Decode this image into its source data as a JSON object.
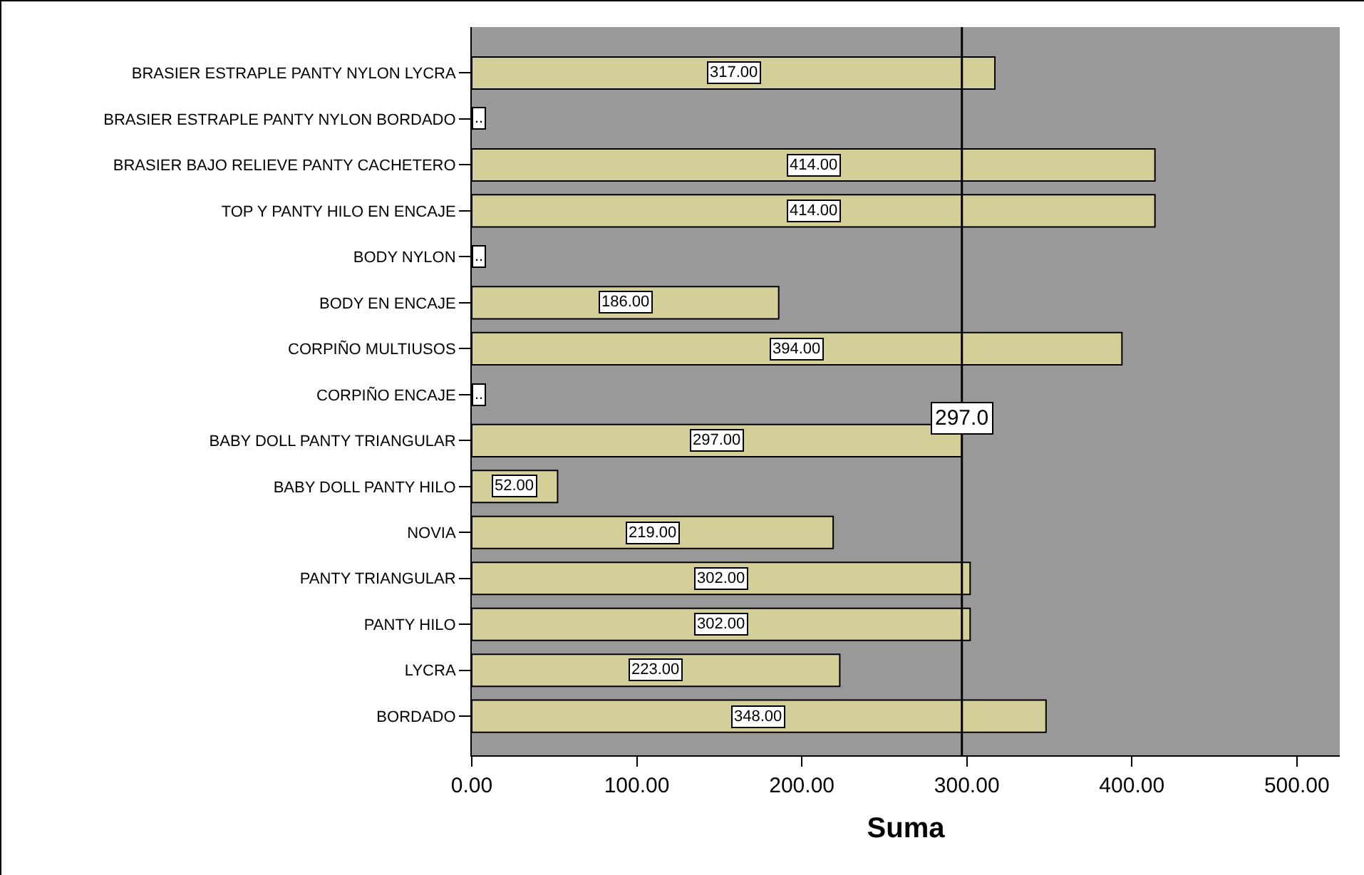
{
  "chart_data": {
    "type": "bar",
    "orientation": "horizontal",
    "xlabel": "Suma",
    "categories": [
      "BRASIER ESTRAPLE PANTY NYLON LYCRA",
      "BRASIER ESTRAPLE PANTY NYLON BORDADO",
      "BRASIER BAJO RELIEVE PANTY CACHETERO",
      "TOP Y PANTY HILO EN ENCAJE",
      "BODY NYLON",
      "BODY EN ENCAJE",
      "CORPIÑO MULTIUSOS",
      "CORPIÑO ENCAJE",
      "BABY DOLL PANTY TRIANGULAR",
      "BABY DOLL PANTY HILO",
      "NOVIA",
      "PANTY TRIANGULAR",
      "PANTY HILO",
      "LYCRA",
      "BORDADO"
    ],
    "values": [
      317,
      null,
      414,
      414,
      null,
      186,
      394,
      null,
      297,
      52,
      219,
      302,
      302,
      223,
      348
    ],
    "value_labels": [
      "317.00",
      "..",
      "414.00",
      "414.00",
      "..",
      "186.00",
      "394.00",
      "..",
      "297.00",
      "52.00",
      "219.00",
      "302.00",
      "302.00",
      "223.00",
      "348.00"
    ],
    "color": "#d4cf99",
    "xlim": [
      0,
      526
    ],
    "xticks": [
      {
        "value": 0,
        "label": "0.00"
      },
      {
        "value": 100,
        "label": "100.00"
      },
      {
        "value": 200,
        "label": "200.00"
      },
      {
        "value": 300,
        "label": "300.00"
      },
      {
        "value": 400,
        "label": "400.00"
      },
      {
        "value": 500,
        "label": "500.00"
      }
    ],
    "ref_lines": [
      {
        "axis": "x",
        "value": 297,
        "label": "297.0",
        "color": "#000000"
      }
    ],
    "grid": false
  }
}
